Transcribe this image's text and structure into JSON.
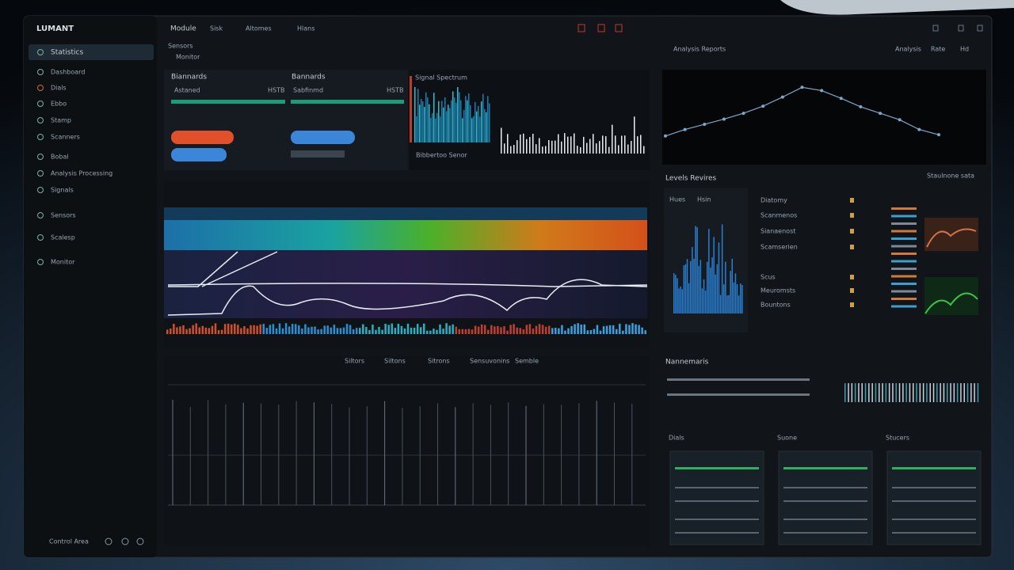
{
  "header": {
    "title": "LUMANT",
    "nav": [
      "Module",
      "Sisk",
      "Altomes",
      "Hlans"
    ],
    "tabs": [
      "Sensors",
      "Monitor"
    ]
  },
  "sidebar": {
    "items": [
      "Statistics",
      "Dashboard",
      "Dials",
      "Ebbo",
      "Stamp",
      "Scanners",
      "Bobal",
      "Analysis Processing",
      "Signals",
      "Sensors",
      "Scalesp",
      "Monitor"
    ],
    "footer": "Control Area"
  },
  "metrics": {
    "cards": [
      {
        "title": "Biannards",
        "row": "Astaned",
        "value": "HSTB"
      },
      {
        "title": "Bannards",
        "row": "Sabfinmd",
        "value": "HSTB"
      }
    ],
    "spectrum_title": "Bibbertoo Senor"
  },
  "spectrum": {
    "title": "Signal Spectrum"
  },
  "grid_panel": {
    "labels": [
      "Siltors",
      "Siltons",
      "Sitrons",
      "Sensuvonins",
      "Semble"
    ]
  },
  "trend": {
    "title": "Analysis Reports",
    "labels": [
      "Analysis",
      "Rate",
      "Hd"
    ],
    "values": [
      10,
      20,
      28,
      36,
      45,
      56,
      70,
      85,
      80,
      68,
      55,
      45,
      35,
      20,
      12
    ],
    "ylim": [
      0,
      100
    ],
    "color": "#7fa8c8"
  },
  "analysis": {
    "title": "Levels Revires",
    "tag": "Staulnone sata",
    "tabs": [
      "Hues",
      "Hsin"
    ],
    "rows": [
      "Diatomy",
      "Scanmenos",
      "Sianaenost",
      "Scamserien",
      "Scus",
      "Meuromsts",
      "Bountons"
    ]
  },
  "controls": {
    "title": "Nannemaris",
    "cards": [
      "Dials",
      "Suone",
      "Stucers"
    ]
  }
}
